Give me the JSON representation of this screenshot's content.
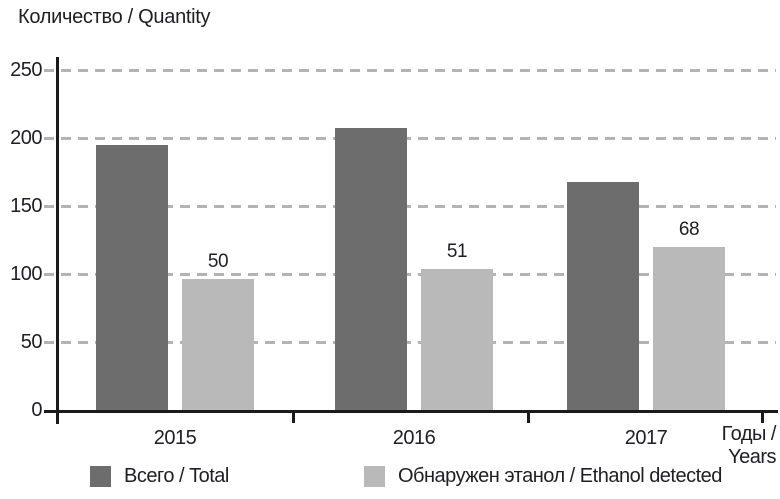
{
  "chart_data": {
    "type": "bar",
    "ylabel": "Количество / Quantity",
    "xlabel_lines": [
      "Годы /",
      "Years"
    ],
    "categories": [
      "2015",
      "2016",
      "2017"
    ],
    "series": [
      {
        "name": "Всего / Total",
        "color": "#6d6d6d",
        "values": [
          195,
          207,
          168
        ],
        "bar_labels": [
          "",
          "",
          ""
        ]
      },
      {
        "name": "Обнаружен этанол / Ethanol detected",
        "color": "#b9b9b9",
        "values": [
          96,
          104,
          120
        ],
        "bar_labels": [
          "50",
          "51",
          "68"
        ]
      }
    ],
    "ylim": [
      0,
      250
    ],
    "yticks": [
      0,
      50,
      100,
      150,
      200,
      250
    ],
    "grid": "horizontal-dashed",
    "gridline_color": "#b3b3b3",
    "axis_color": "#1a1a1a",
    "text_color": "#1e1e24",
    "legend_position": "bottom"
  }
}
